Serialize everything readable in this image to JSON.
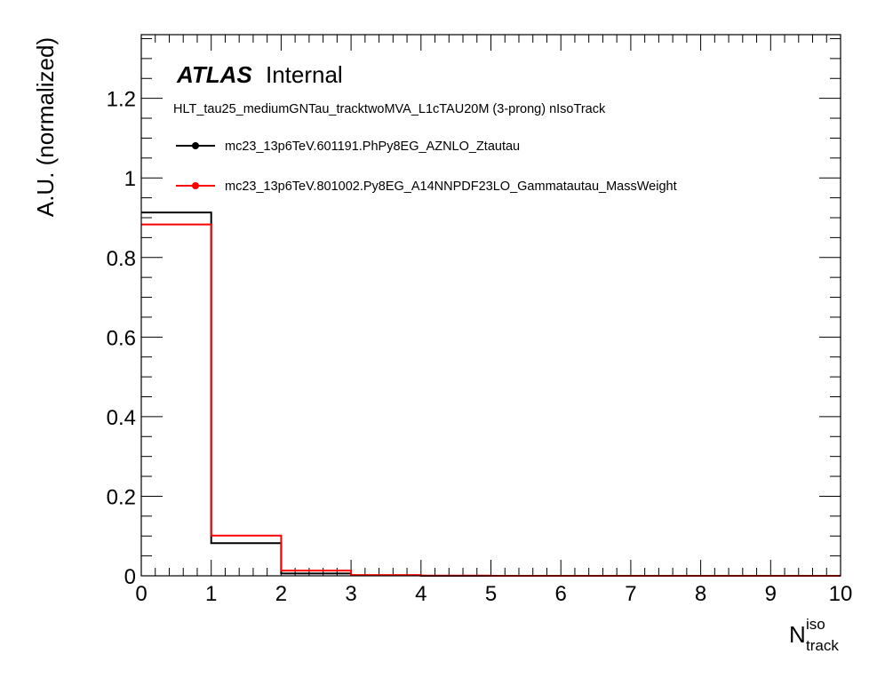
{
  "chart_data": {
    "type": "histogram",
    "ylabel": "A.U. (normalized)",
    "xlabel_main": "N",
    "xlabel_sup": "iso",
    "xlabel_sub": "track",
    "xlim": [
      0,
      10
    ],
    "ylim": [
      0,
      1.36
    ],
    "x_ticks": [
      "0",
      "1",
      "2",
      "3",
      "4",
      "5",
      "6",
      "7",
      "8",
      "9",
      "10"
    ],
    "y_ticks": [
      "0",
      "0.2",
      "0.4",
      "0.6",
      "0.8",
      "1",
      "1.2"
    ],
    "y_tick_values": [
      0,
      0.2,
      0.4,
      0.6,
      0.8,
      1.0,
      1.2
    ],
    "atlas_label": "ATLAS",
    "atlas_status": "Internal",
    "trigger_label": "HLT_tau25_mediumGNTau_tracktwoMVA_L1cTAU20M (3-prong) nIsoTrack",
    "bin_edges": [
      0,
      1,
      2,
      3,
      4,
      5,
      6,
      7,
      8,
      9,
      10
    ],
    "series": [
      {
        "name": "mc23_13p6TeV.601191.PhPy8EG_AZNLO_Ztautau",
        "color": "#000000",
        "values": [
          0.913,
          0.082,
          0.006,
          0.001,
          0,
          0,
          0,
          0,
          0,
          0
        ]
      },
      {
        "name": "mc23_13p6TeV.801002.Py8EG_A14NNPDF23LO_Gammatautau_MassWeight",
        "color": "#ff0000",
        "values": [
          0.883,
          0.101,
          0.013,
          0.002,
          0.0005,
          0,
          0,
          0,
          0,
          0
        ]
      }
    ]
  }
}
